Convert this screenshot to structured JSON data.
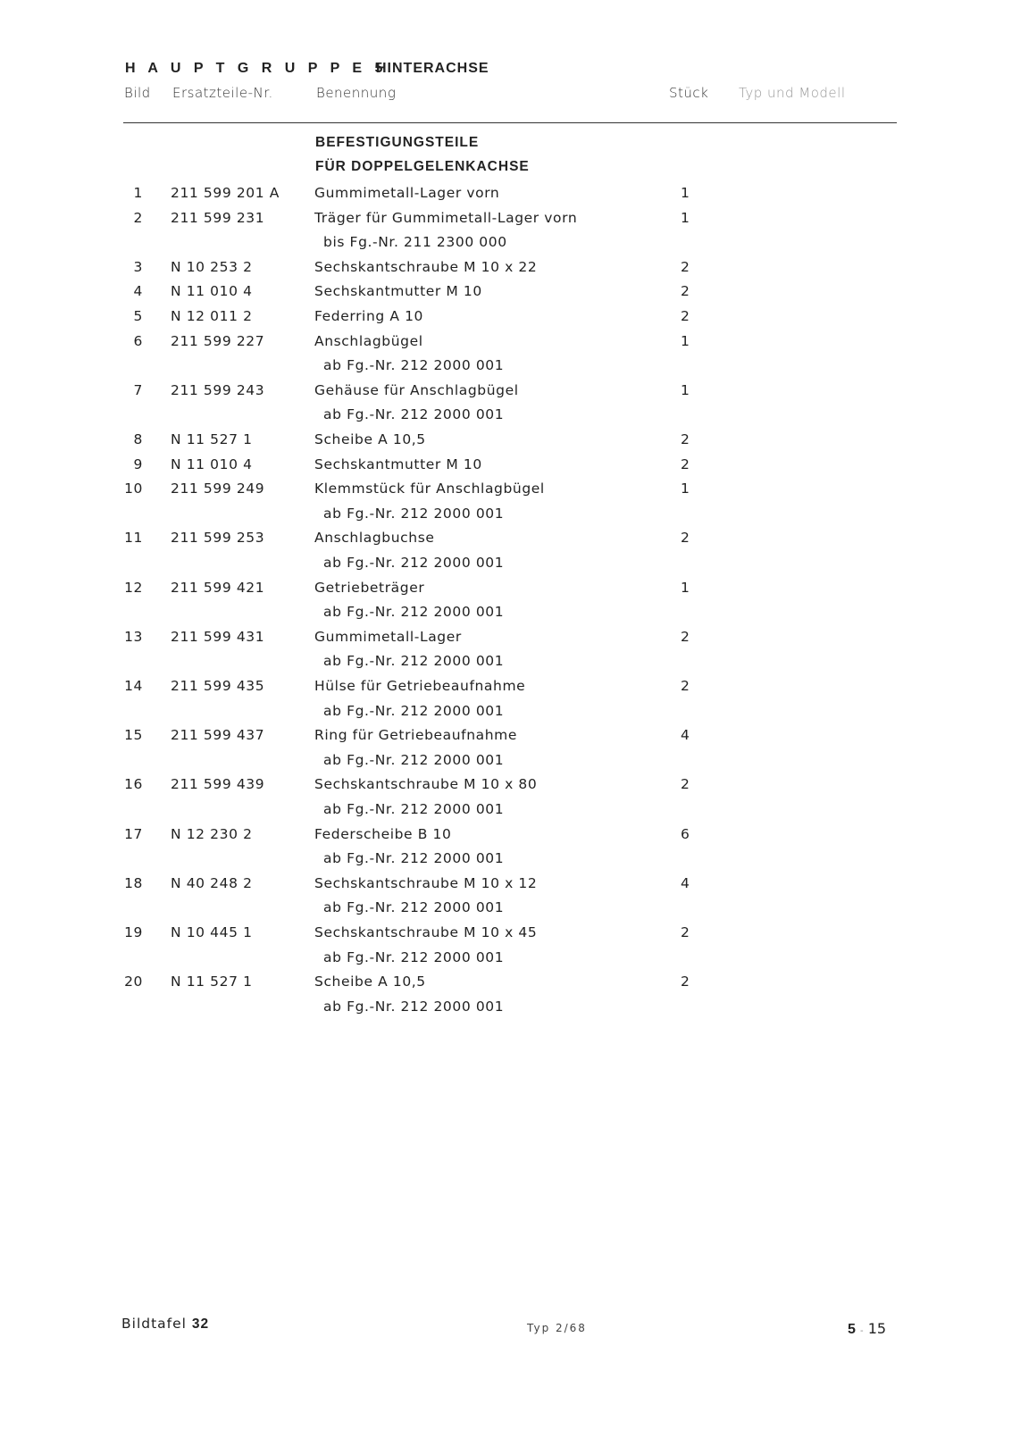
{
  "header": {
    "group": "H A U P T G R U P P E  5",
    "title": "HINTERACHSE"
  },
  "columns": {
    "bild": "Bild",
    "part": "Ersatzteile-Nr.",
    "name": "Benennung",
    "qty": "Stück",
    "model": "Typ und Modell"
  },
  "section": [
    "BEFESTIGUNGSTEILE",
    "FÜR DOPPELGELENKACHSE"
  ],
  "items": [
    {
      "bild": "1",
      "part": "211 599 201 A",
      "name": "Gummimetall-Lager vorn",
      "qty": "1"
    },
    {
      "bild": "2",
      "part": "211 599 231",
      "name": "Träger für Gummimetall-Lager vorn",
      "qty": "1",
      "note": "bis Fg.-Nr. 211 2300 000"
    },
    {
      "bild": "3",
      "part": "N 10 253 2",
      "name": "Sechskantschraube M 10 x 22",
      "qty": "2"
    },
    {
      "bild": "4",
      "part": "N 11 010 4",
      "name": "Sechskantmutter M 10",
      "qty": "2"
    },
    {
      "bild": "5",
      "part": "N 12 011 2",
      "name": "Federring A 10",
      "qty": "2"
    },
    {
      "bild": "6",
      "part": "211 599 227",
      "name": "Anschlagbügel",
      "qty": "1",
      "note": "ab Fg.-Nr. 212 2000 001"
    },
    {
      "bild": "7",
      "part": "211 599 243",
      "name": "Gehäuse für Anschlagbügel",
      "qty": "1",
      "note": "ab Fg.-Nr. 212 2000 001"
    },
    {
      "bild": "8",
      "part": "N 11 527 1",
      "name": "Scheibe A 10,5",
      "qty": "2"
    },
    {
      "bild": "9",
      "part": "N 11 010 4",
      "name": "Sechskantmutter M 10",
      "qty": "2"
    },
    {
      "bild": "10",
      "part": "211 599 249",
      "name": "Klemmstück für Anschlagbügel",
      "qty": "1",
      "note": "ab Fg.-Nr. 212 2000 001"
    },
    {
      "bild": "11",
      "part": "211 599 253",
      "name": "Anschlagbuchse",
      "qty": "2",
      "note": "ab Fg.-Nr. 212 2000 001"
    },
    {
      "bild": "12",
      "part": "211 599 421",
      "name": "Getriebeträger",
      "qty": "1",
      "note": "ab Fg.-Nr. 212 2000 001"
    },
    {
      "bild": "13",
      "part": "211 599 431",
      "name": "Gummimetall-Lager",
      "qty": "2",
      "note": "ab Fg.-Nr. 212 2000 001"
    },
    {
      "bild": "14",
      "part": "211 599 435",
      "name": "Hülse für Getriebeaufnahme",
      "qty": "2",
      "note": "ab Fg.-Nr. 212 2000 001"
    },
    {
      "bild": "15",
      "part": "211 599 437",
      "name": "Ring für Getriebeaufnahme",
      "qty": "4",
      "note": "ab Fg.-Nr. 212 2000 001"
    },
    {
      "bild": "16",
      "part": "211 599 439",
      "name": "Sechskantschraube M 10 x 80",
      "qty": "2",
      "note": "ab Fg.-Nr. 212 2000 001"
    },
    {
      "bild": "17",
      "part": "N 12 230 2",
      "name": "Federscheibe B 10",
      "qty": "6",
      "note": "ab Fg.-Nr. 212 2000 001"
    },
    {
      "bild": "18",
      "part": "N 40 248 2",
      "name": "Sechskantschraube M 10 x 12",
      "qty": "4",
      "note": "ab Fg.-Nr. 212 2000 001"
    },
    {
      "bild": "19",
      "part": "N 10 445 1",
      "name": "Sechskantschraube M 10 x 45",
      "qty": "2",
      "note": "ab Fg.-Nr. 212 2000 001"
    },
    {
      "bild": "20",
      "part": "N 11 527 1",
      "name": "Scheibe A 10,5",
      "qty": "2",
      "note": "ab Fg.-Nr. 212 2000 001"
    }
  ],
  "footer": {
    "plate_label": "Bildtafel",
    "plate_no": "32",
    "type": "Typ  2/68",
    "page_group": "5",
    "page_sep": "-",
    "page_no": "15"
  }
}
